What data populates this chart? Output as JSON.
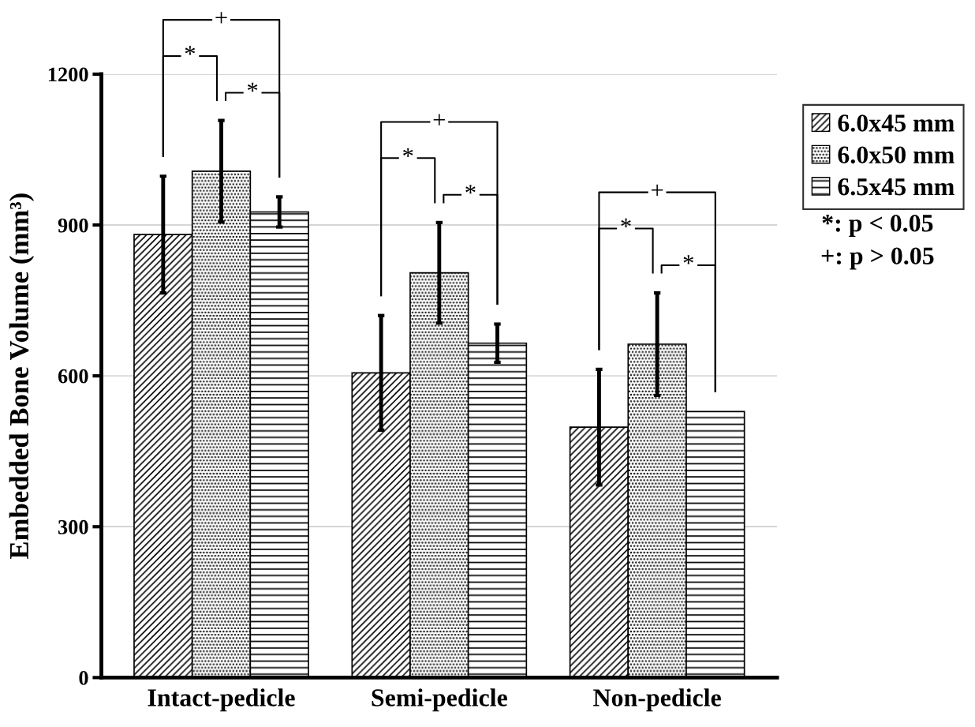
{
  "chart_data": {
    "type": "bar",
    "ylabel": "Embedded Bone Volume (mm³)",
    "categories": [
      "Intact-pedicle",
      "Semi-pedicle",
      "Non-pedicle"
    ],
    "series": [
      {
        "name": "6.0x45 mm",
        "color": "#000000",
        "values": [
          881,
          606,
          498
        ],
        "errors": [
          116,
          114,
          115
        ]
      },
      {
        "name": "6.0x50 mm",
        "color": "#000000",
        "values": [
          1007,
          805,
          663
        ],
        "errors": [
          101,
          100,
          102
        ]
      },
      {
        "name": "6.5x45 mm",
        "color": "#000000",
        "values": [
          926,
          665,
          529
        ],
        "errors": [
          30,
          38,
          null
        ]
      }
    ],
    "ylim": [
      0,
      1200
    ],
    "yticks": [
      0,
      300,
      600,
      900,
      1200
    ],
    "grid": "y",
    "legend": "top right",
    "annotations": [
      "+",
      "*",
      "*",
      "+",
      "*",
      "*",
      "+",
      "*",
      "*",
      "*: p < 0.05",
      "+: p > 0.05"
    ]
  }
}
